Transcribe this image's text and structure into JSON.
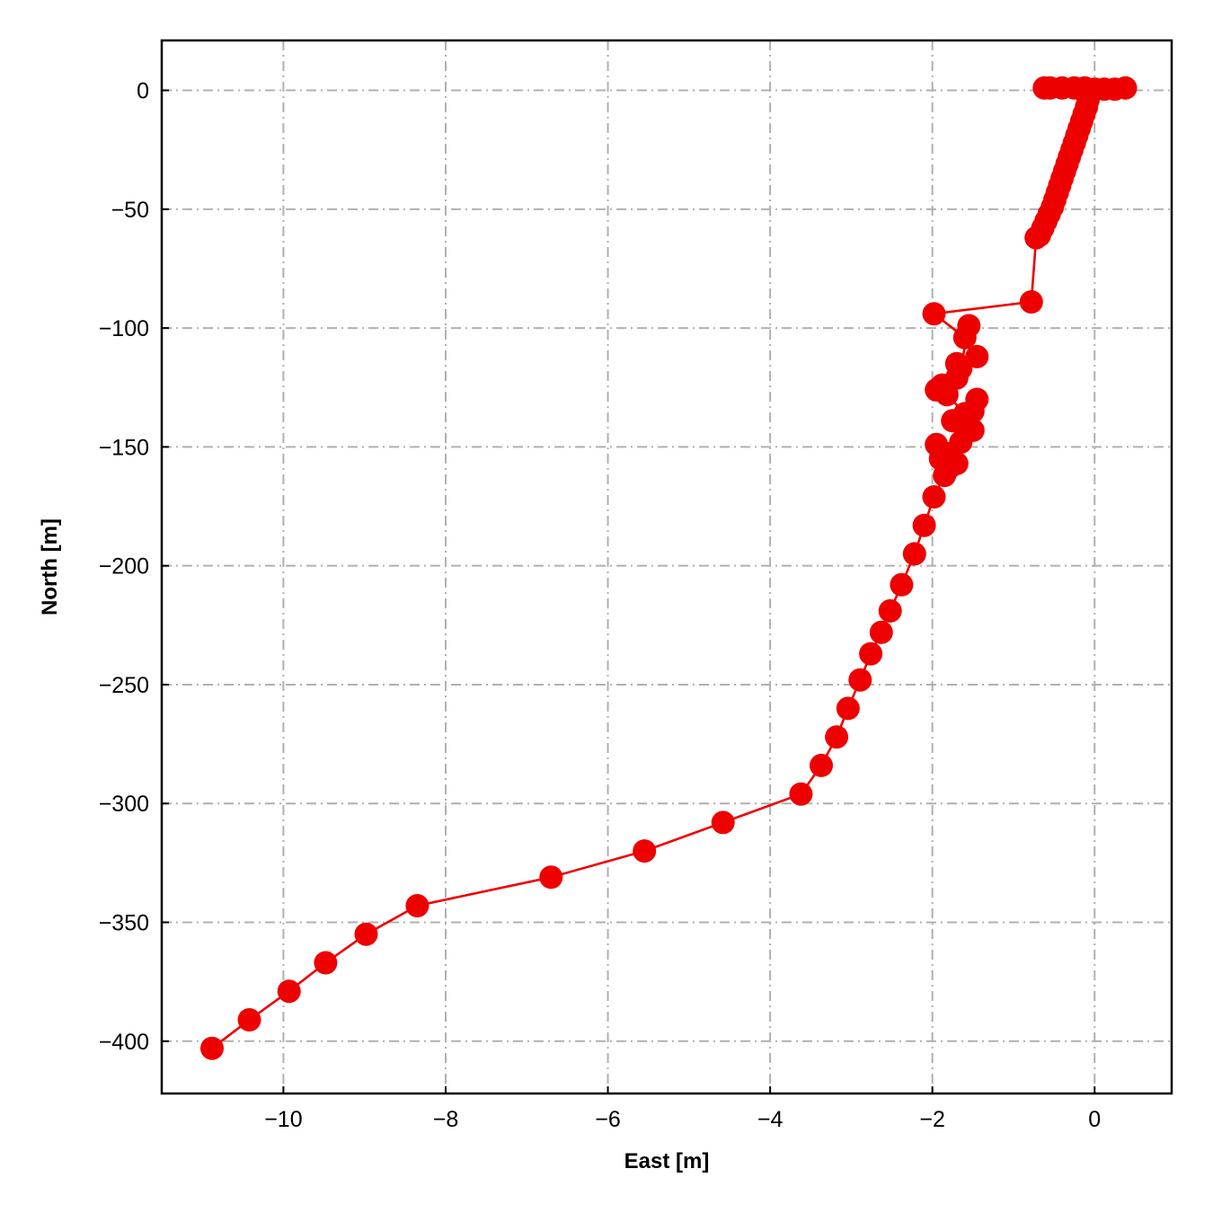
{
  "chart_data": {
    "type": "line",
    "xlabel": "East [m]",
    "ylabel": "North [m]",
    "xlim": [
      -11.5,
      0.95
    ],
    "ylim": [
      -422,
      21
    ],
    "xticks": [
      -10,
      -8,
      -6,
      -4,
      -2,
      0
    ],
    "yticks": [
      0,
      -50,
      -100,
      -150,
      -200,
      -250,
      -300,
      -350,
      -400
    ],
    "xtick_labels": [
      "−10",
      "−8",
      "−6",
      "−4",
      "−2",
      "0"
    ],
    "ytick_labels": [
      "0",
      "−50",
      "−100",
      "−150",
      "−200",
      "−250",
      "−300",
      "−350",
      "−400"
    ],
    "grid": true,
    "color": "#ee0000",
    "marker": "circle",
    "series": [
      {
        "x": [
          0.38,
          0.25,
          0.12,
          0.0,
          -0.12,
          -0.25,
          -0.4,
          -0.55,
          -0.62,
          -0.08,
          -0.1,
          -0.13,
          -0.16,
          -0.19,
          -0.22,
          -0.25,
          -0.28,
          -0.31,
          -0.34,
          -0.37,
          -0.4,
          -0.43,
          -0.46,
          -0.49,
          -0.52,
          -0.56,
          -0.6,
          -0.64,
          -0.68,
          -0.72,
          -0.78,
          -1.98,
          -1.6,
          -1.55,
          -1.65,
          -1.45,
          -1.7,
          -1.88,
          -1.95,
          -1.7,
          -1.82,
          -1.6,
          -1.5,
          -1.45,
          -1.6,
          -1.75,
          -1.5,
          -1.65,
          -1.95,
          -1.8,
          -1.7,
          -1.9,
          -1.8,
          -1.85,
          -1.98,
          -2.1,
          -2.22,
          -2.38,
          -2.52,
          -2.63,
          -2.76,
          -2.89,
          -3.04,
          -3.18,
          -3.37,
          -3.62,
          -4.58,
          -5.55,
          -6.7,
          -8.35,
          -8.98,
          -9.48,
          -9.93,
          -10.42,
          -10.88
        ],
        "y": [
          1.0,
          0.5,
          0.5,
          0.5,
          1.0,
          1.0,
          1.0,
          1.0,
          1.0,
          -4,
          -7,
          -10,
          -13,
          -16,
          -19,
          -22,
          -25,
          -28,
          -31,
          -34,
          -37,
          -40,
          -43,
          -46,
          -49,
          -52,
          -55,
          -58,
          -61,
          -62,
          -89,
          -94,
          -104,
          -99,
          -117,
          -112,
          -121,
          -124,
          -126,
          -115,
          -128,
          -136,
          -135,
          -130,
          -142,
          -139,
          -143,
          -148,
          -149,
          -153,
          -157,
          -155,
          -159,
          -162,
          -171,
          -183,
          -195,
          -208,
          -219,
          -228,
          -237,
          -248,
          -260,
          -272,
          -284,
          -296,
          -308,
          -320,
          -331,
          -343,
          -355,
          -367,
          -379,
          -391,
          -403
        ]
      }
    ]
  }
}
